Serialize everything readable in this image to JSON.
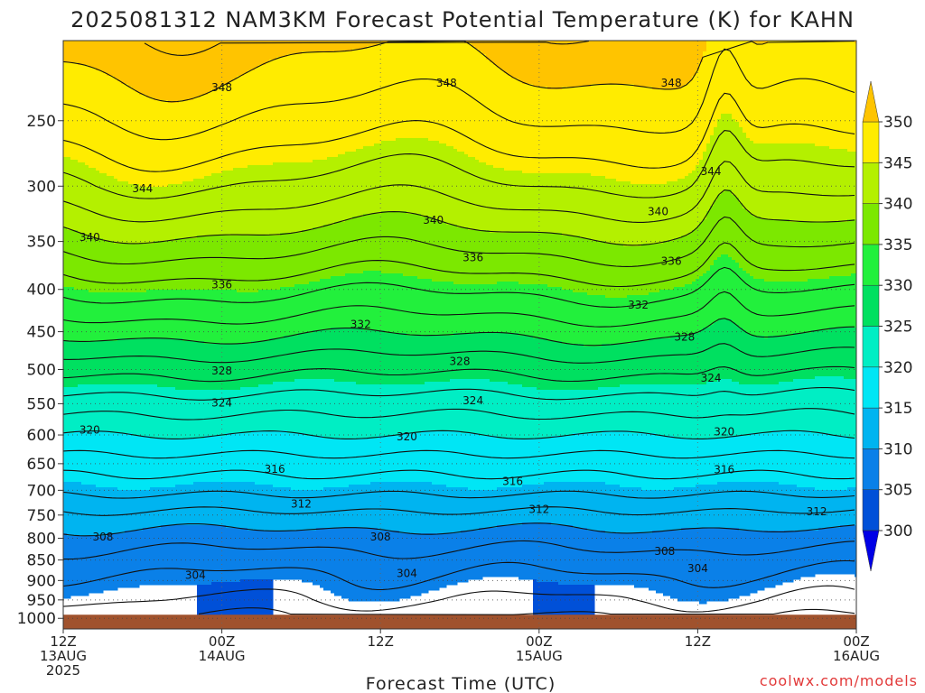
{
  "title": "2025081312 NAM3KM Forecast Potential Temperature (K) for KAHN",
  "xlabel": "Forecast Time (UTC)",
  "credit": "coolwx.com/models",
  "chart_data": {
    "type": "heatmap",
    "title": "2025081312 NAM3KM Forecast Potential Temperature (K) for KAHN",
    "xlabel": "Forecast Time (UTC)",
    "ylabel": "",
    "y_axis": {
      "variable": "pressure (hPa)",
      "inverted": true,
      "scale": "log",
      "range": [
        1030,
        200
      ],
      "ticks": [
        250,
        300,
        350,
        400,
        450,
        500,
        550,
        600,
        650,
        700,
        750,
        800,
        850,
        900,
        950,
        1000
      ]
    },
    "x_axis": {
      "range_hours": [
        0,
        60
      ],
      "ticks": [
        {
          "hour": 0,
          "lines": [
            "12Z",
            "13AUG",
            "2025"
          ]
        },
        {
          "hour": 12,
          "lines": [
            "00Z",
            "14AUG"
          ]
        },
        {
          "hour": 24,
          "lines": [
            "12Z"
          ]
        },
        {
          "hour": 36,
          "lines": [
            "00Z",
            "15AUG"
          ]
        },
        {
          "hour": 48,
          "lines": [
            "12Z"
          ]
        },
        {
          "hour": 60,
          "lines": [
            "00Z",
            "16AUG"
          ]
        }
      ],
      "grid": true
    },
    "colorbar": {
      "levels": [
        300,
        305,
        310,
        315,
        320,
        325,
        330,
        335,
        340,
        345,
        350
      ],
      "colors": [
        "#0000e6",
        "#0050d8",
        "#0a80e8",
        "#00b4f0",
        "#00e6f5",
        "#00eec4",
        "#00e060",
        "#22f03c",
        "#7ce800",
        "#b4f000",
        "#ffec00",
        "#ffc400"
      ],
      "extend": "both"
    },
    "contour_interval": 4,
    "contour_profile": [
      {
        "pressure": 1000,
        "theta": 302.0
      },
      {
        "pressure": 950,
        "theta": 304.0
      },
      {
        "pressure": 900,
        "theta": 305.5
      },
      {
        "pressure": 850,
        "theta": 307.0
      },
      {
        "pressure": 800,
        "theta": 309.0
      },
      {
        "pressure": 750,
        "theta": 311.5
      },
      {
        "pressure": 700,
        "theta": 314.5
      },
      {
        "pressure": 650,
        "theta": 317.0
      },
      {
        "pressure": 600,
        "theta": 320.0
      },
      {
        "pressure": 550,
        "theta": 323.0
      },
      {
        "pressure": 500,
        "theta": 326.5
      },
      {
        "pressure": 450,
        "theta": 330.5
      },
      {
        "pressure": 400,
        "theta": 334.5
      },
      {
        "pressure": 350,
        "theta": 339.0
      },
      {
        "pressure": 300,
        "theta": 343.5
      },
      {
        "pressure": 250,
        "theta": 347.5
      },
      {
        "pressure": 200,
        "theta": 351.0
      }
    ],
    "contour_labels": [
      {
        "value": 348,
        "text": "348",
        "hour": 12.0,
        "pressure": 228
      },
      {
        "value": 348,
        "text": "348",
        "hour": 29.0,
        "pressure": 225
      },
      {
        "value": 348,
        "text": "348",
        "hour": 46.0,
        "pressure": 225
      },
      {
        "value": 344,
        "text": "344",
        "hour": 6.0,
        "pressure": 302
      },
      {
        "value": 344,
        "text": "344",
        "hour": 49.0,
        "pressure": 288
      },
      {
        "value": 340,
        "text": "340",
        "hour": 2.0,
        "pressure": 346
      },
      {
        "value": 340,
        "text": "340",
        "hour": 28.0,
        "pressure": 330
      },
      {
        "value": 340,
        "text": "340",
        "hour": 45.0,
        "pressure": 322
      },
      {
        "value": 336,
        "text": "336",
        "hour": 12.0,
        "pressure": 395
      },
      {
        "value": 336,
        "text": "336",
        "hour": 31.0,
        "pressure": 366
      },
      {
        "value": 336,
        "text": "336",
        "hour": 46.0,
        "pressure": 370
      },
      {
        "value": 332,
        "text": "332",
        "hour": 22.5,
        "pressure": 441
      },
      {
        "value": 332,
        "text": "332",
        "hour": 43.5,
        "pressure": 418
      },
      {
        "value": 328,
        "text": "328",
        "hour": 12.0,
        "pressure": 502
      },
      {
        "value": 328,
        "text": "328",
        "hour": 30.0,
        "pressure": 489
      },
      {
        "value": 328,
        "text": "328",
        "hour": 47.0,
        "pressure": 457
      },
      {
        "value": 324,
        "text": "324",
        "hour": 12.0,
        "pressure": 549
      },
      {
        "value": 324,
        "text": "324",
        "hour": 31.0,
        "pressure": 545
      },
      {
        "value": 324,
        "text": "324",
        "hour": 49.0,
        "pressure": 512
      },
      {
        "value": 320,
        "text": "320",
        "hour": 2.0,
        "pressure": 592
      },
      {
        "value": 320,
        "text": "320",
        "hour": 26.0,
        "pressure": 603
      },
      {
        "value": 320,
        "text": "320",
        "hour": 50.0,
        "pressure": 595
      },
      {
        "value": 316,
        "text": "316",
        "hour": 16.0,
        "pressure": 660
      },
      {
        "value": 316,
        "text": "316",
        "hour": 34.0,
        "pressure": 683
      },
      {
        "value": 316,
        "text": "316",
        "hour": 50.0,
        "pressure": 661
      },
      {
        "value": 312,
        "text": "312",
        "hour": 18.0,
        "pressure": 727
      },
      {
        "value": 312,
        "text": "312",
        "hour": 36.0,
        "pressure": 738
      },
      {
        "value": 312,
        "text": "312",
        "hour": 57.0,
        "pressure": 743
      },
      {
        "value": 308,
        "text": "308",
        "hour": 3.0,
        "pressure": 797
      },
      {
        "value": 308,
        "text": "308",
        "hour": 24.0,
        "pressure": 797
      },
      {
        "value": 308,
        "text": "308",
        "hour": 45.5,
        "pressure": 830
      },
      {
        "value": 304,
        "text": "304",
        "hour": 10.0,
        "pressure": 887
      },
      {
        "value": 304,
        "text": "304",
        "hour": 26.0,
        "pressure": 882
      },
      {
        "value": 304,
        "text": "304",
        "hour": 48.0,
        "pressure": 870
      }
    ],
    "ground_level_pressure": 990,
    "ground_color": "#a0522d"
  }
}
